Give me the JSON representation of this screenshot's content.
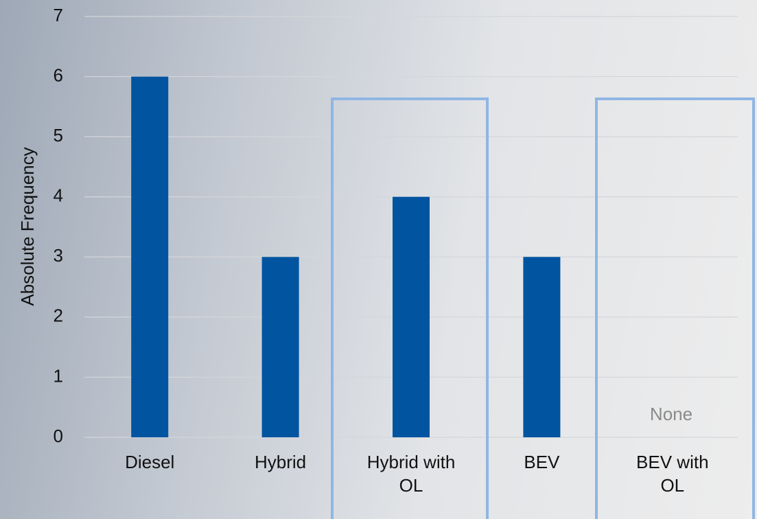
{
  "chart_data": {
    "type": "bar",
    "y_label": "Absolute Frequency",
    "categories": [
      "Diesel",
      "Hybrid",
      "Hybrid with OL",
      "BEV",
      "BEV with OL"
    ],
    "values": [
      6,
      3,
      4,
      3,
      0
    ],
    "color": "#0054a0",
    "annotation": "None",
    "ylim": [
      0,
      7
    ],
    "yticks": [
      0,
      1,
      2,
      3,
      4,
      5,
      6,
      7
    ],
    "grid": true
  }
}
